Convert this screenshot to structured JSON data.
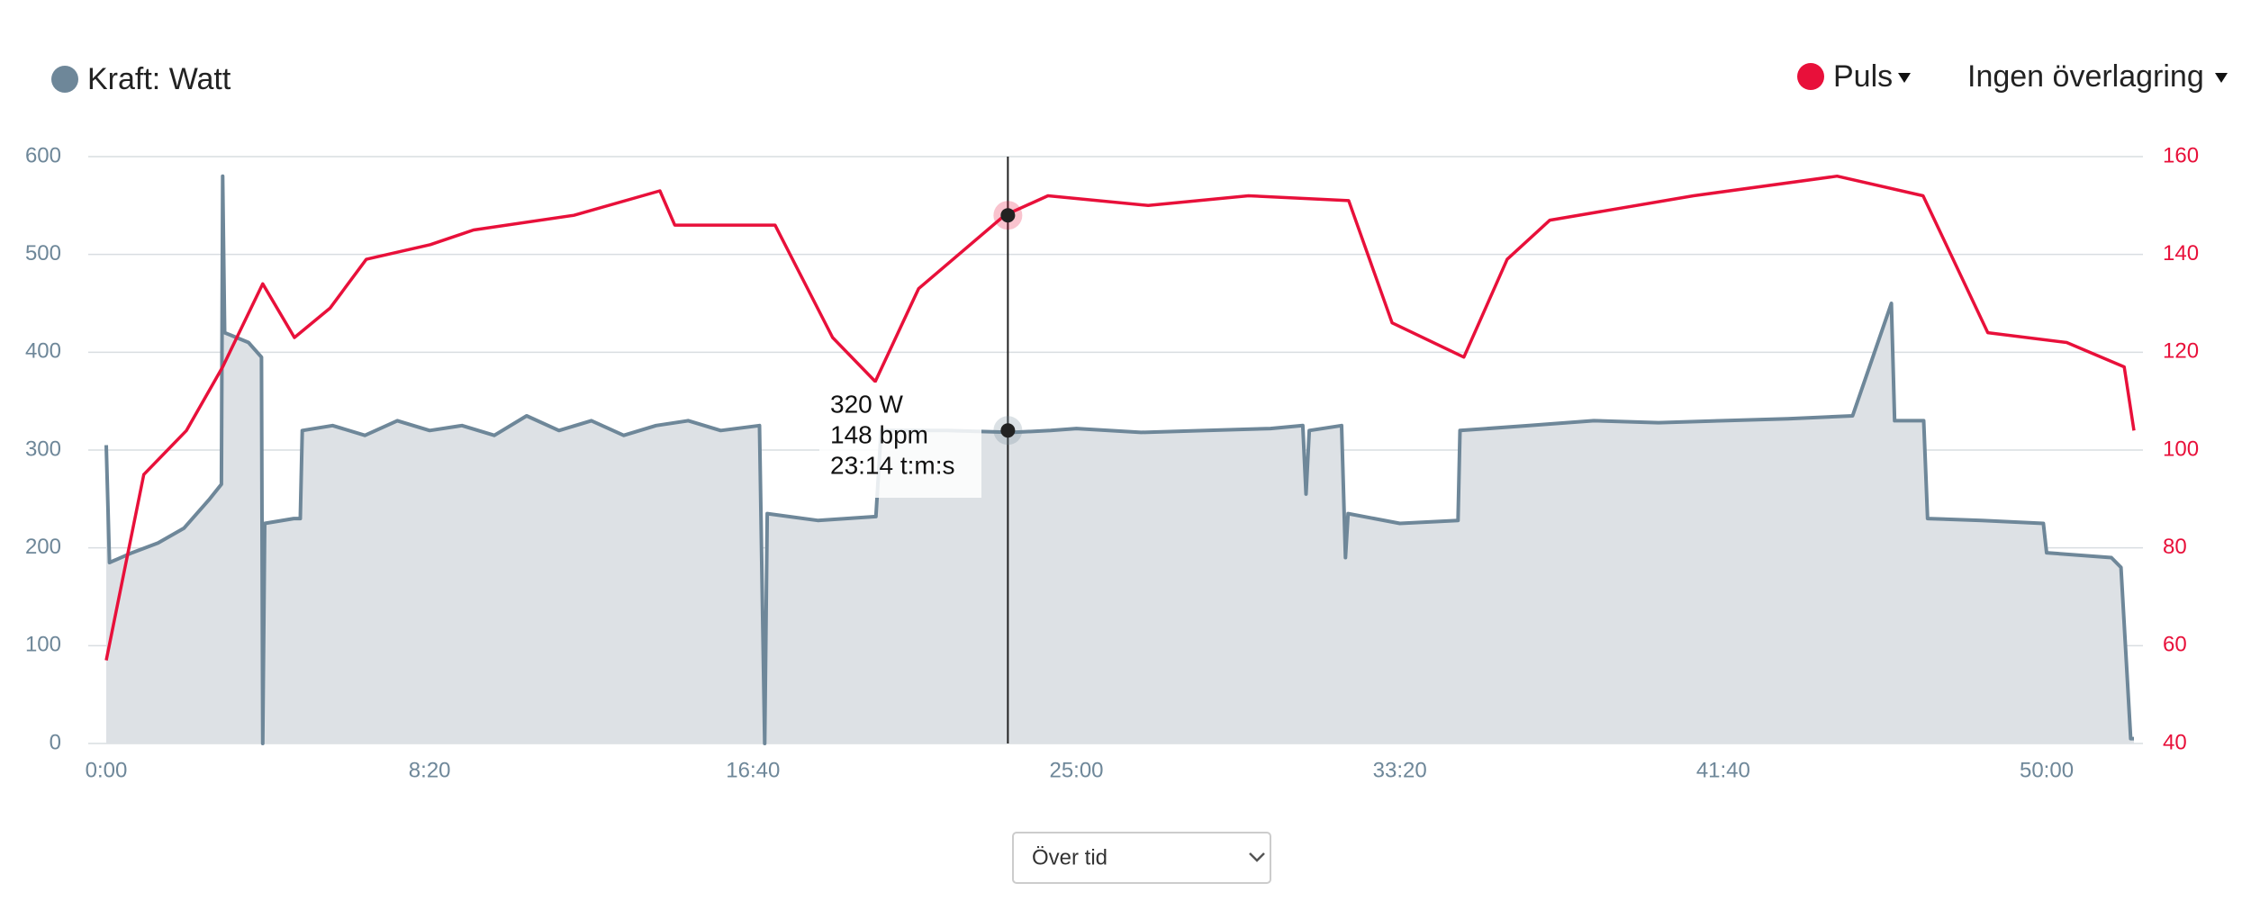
{
  "chart_data": {
    "type": "line",
    "xlim": [
      0,
      3135
    ],
    "xticks": [
      {
        "value": 0,
        "label": "0:00"
      },
      {
        "value": 500,
        "label": "8:20"
      },
      {
        "value": 1000,
        "label": "16:40"
      },
      {
        "value": 1500,
        "label": "25:00"
      },
      {
        "value": 2000,
        "label": "33:20"
      },
      {
        "value": 2500,
        "label": "41:40"
      },
      {
        "value": 3000,
        "label": "50:00"
      }
    ],
    "ylim": [
      0,
      600
    ],
    "yticks": [
      0,
      100,
      200,
      300,
      400,
      500,
      600
    ],
    "y2lim": [
      40,
      160
    ],
    "y2ticks": [
      40,
      60,
      80,
      100,
      120,
      140,
      160
    ],
    "grid": true,
    "series": [
      {
        "name": "Kraft: Watt",
        "color": "#6e8799",
        "fill": "#dde1e5",
        "axis": "y",
        "x": [
          0,
          5,
          40,
          80,
          120,
          160,
          178,
          180,
          183,
          220,
          240,
          242,
          245,
          290,
          300,
          303,
          350,
          400,
          450,
          500,
          550,
          600,
          650,
          700,
          750,
          800,
          850,
          900,
          950,
          1010,
          1018,
          1022,
          1100,
          1190,
          1198,
          1300,
          1400,
          1460,
          1500,
          1600,
          1700,
          1800,
          1850,
          1855,
          1860,
          1910,
          1916,
          1920,
          2000,
          2090,
          2093,
          2200,
          2300,
          2400,
          2500,
          2600,
          2700,
          2760,
          2765,
          2810,
          2816,
          2900,
          2995,
          3000,
          3100,
          3115,
          3130,
          3135
        ],
        "values": [
          305,
          185,
          195,
          205,
          220,
          250,
          265,
          580,
          420,
          410,
          395,
          0,
          225,
          230,
          230,
          320,
          325,
          315,
          330,
          320,
          325,
          315,
          335,
          320,
          330,
          315,
          325,
          330,
          320,
          325,
          0,
          235,
          228,
          232,
          320,
          320,
          318,
          320,
          322,
          318,
          320,
          322,
          325,
          255,
          320,
          325,
          190,
          235,
          225,
          228,
          320,
          325,
          330,
          328,
          330,
          332,
          335,
          450,
          330,
          330,
          230,
          228,
          225,
          195,
          190,
          180,
          5,
          5
        ]
      },
      {
        "name": "Puls",
        "color": "#e8103a",
        "axis": "y2",
        "x": [
          0,
          58,
          124,
          180,
          242,
          291,
          346,
          402,
          501,
          568,
          723,
          856,
          879,
          1034,
          1123,
          1189,
          1256,
          1389,
          1456,
          1611,
          1766,
          1921,
          1988,
          2099,
          2166,
          2232,
          2454,
          2676,
          2809,
          2909,
          3031,
          3120,
          3135
        ],
        "values": [
          57,
          95,
          104,
          117,
          134,
          123,
          129,
          139,
          142,
          145,
          148,
          153,
          146,
          146,
          123,
          114,
          133,
          148,
          152,
          150,
          152,
          151,
          126,
          119,
          139,
          147,
          152,
          156,
          152,
          124,
          122,
          117,
          104
        ]
      }
    ],
    "tooltip": {
      "x": {
        "value": 1394,
        "label": "23:14 t:m:s"
      },
      "items": [
        {
          "value": 320,
          "label": "320 W"
        },
        {
          "value": 148,
          "label": "148 bpm"
        }
      ]
    },
    "overlay": "Ingen överlagring",
    "mode": "Över tid"
  }
}
